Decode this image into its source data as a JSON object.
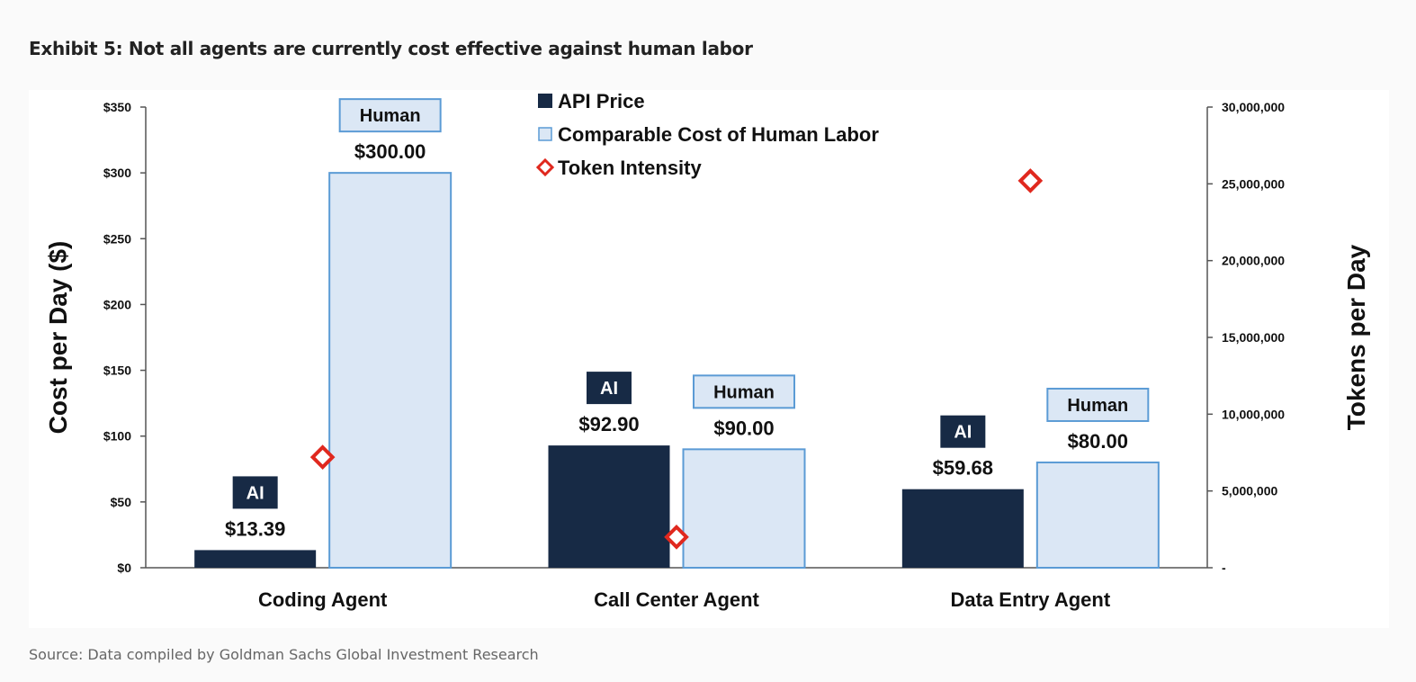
{
  "title": "Exhibit 5: Not all agents are currently cost effective against human labor",
  "source": "Source: Data compiled by Goldman Sachs Global Investment Research",
  "colors": {
    "ai": "#172a45",
    "human_fill": "#dbe7f5",
    "human_stroke": "#5b9bd5",
    "token": "#e0281e",
    "axis": "#555555"
  },
  "chart_data": {
    "type": "bar",
    "categories": [
      "Coding Agent",
      "Call Center Agent",
      "Data Entry Agent"
    ],
    "series": [
      {
        "name": "API Price",
        "axis": "left",
        "values": [
          13.39,
          92.9,
          59.68
        ],
        "labels": [
          "$13.39",
          "$92.90",
          "$59.68"
        ],
        "tag": "AI"
      },
      {
        "name": "Comparable Cost of Human Labor",
        "axis": "left",
        "values": [
          300.0,
          90.0,
          80.0
        ],
        "labels": [
          "$300.00",
          "$90.00",
          "$80.00"
        ],
        "tag": "Human"
      },
      {
        "name": "Token Intensity",
        "axis": "right",
        "type": "scatter",
        "values": [
          7200000,
          2000000,
          25200000
        ]
      }
    ],
    "ylabel": "Cost per Day ($)",
    "y2label": "Tokens per Day",
    "ylim": [
      0,
      350
    ],
    "y2lim": [
      0,
      30000000
    ],
    "yticks": [
      "$0",
      "$50",
      "$100",
      "$150",
      "$200",
      "$250",
      "$300",
      "$350"
    ],
    "y2ticks": [
      "-",
      "5,000,000",
      "10,000,000",
      "15,000,000",
      "20,000,000",
      "25,000,000",
      "30,000,000"
    ],
    "legend": {
      "position": "top-center"
    },
    "grid": false
  }
}
